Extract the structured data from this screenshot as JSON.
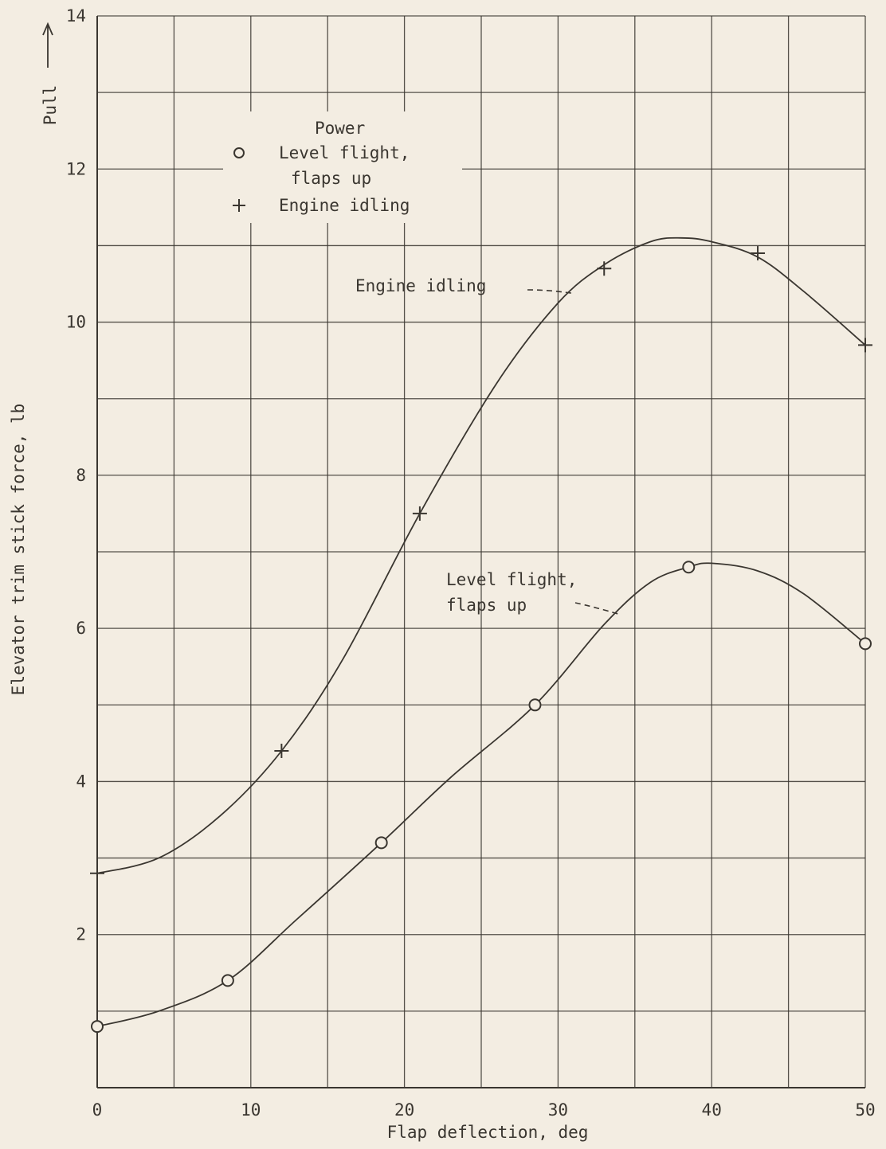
{
  "chart_data": {
    "type": "line",
    "xlabel": "Flap deflection, deg",
    "ylabel": "Elevator trim stick force, lb",
    "direction_label": "Pull",
    "xlim": [
      0,
      50
    ],
    "ylim": [
      0,
      14
    ],
    "x_ticks": [
      "0",
      "10",
      "20",
      "30",
      "40",
      "50"
    ],
    "y_ticks": [
      "2",
      "4",
      "6",
      "8",
      "10",
      "12",
      "14"
    ],
    "grid": true,
    "legend": {
      "title": "Power",
      "entries": [
        {
          "marker": "circle",
          "label_lines": [
            "Level flight,",
            "flaps up"
          ]
        },
        {
          "marker": "plus",
          "label_lines": [
            "Engine idling"
          ]
        }
      ]
    },
    "series": [
      {
        "name": "Level flight, flaps up",
        "marker": "circle",
        "points": [
          [
            0,
            0.8
          ],
          [
            8.5,
            1.4
          ],
          [
            18.5,
            3.2
          ],
          [
            28.5,
            5.0
          ],
          [
            38.5,
            6.8
          ],
          [
            50,
            5.8
          ]
        ],
        "curve": [
          [
            0,
            0.8
          ],
          [
            4,
            1.0
          ],
          [
            8.5,
            1.4
          ],
          [
            13,
            2.2
          ],
          [
            18.5,
            3.2
          ],
          [
            23,
            4.05
          ],
          [
            28.5,
            5.0
          ],
          [
            33,
            6.05
          ],
          [
            36,
            6.6
          ],
          [
            38.5,
            6.8
          ],
          [
            40,
            6.85
          ],
          [
            43,
            6.75
          ],
          [
            46,
            6.45
          ],
          [
            50,
            5.8
          ]
        ]
      },
      {
        "name": "Engine idling",
        "marker": "plus",
        "points": [
          [
            0,
            2.8
          ],
          [
            12,
            4.4
          ],
          [
            21,
            7.5
          ],
          [
            33,
            10.7
          ],
          [
            43,
            10.9
          ],
          [
            50,
            9.7
          ]
        ],
        "curve": [
          [
            0,
            2.8
          ],
          [
            4,
            3.0
          ],
          [
            8,
            3.55
          ],
          [
            12,
            4.4
          ],
          [
            16,
            5.6
          ],
          [
            21,
            7.5
          ],
          [
            26,
            9.2
          ],
          [
            30,
            10.25
          ],
          [
            33,
            10.75
          ],
          [
            36,
            11.05
          ],
          [
            38,
            11.1
          ],
          [
            40,
            11.05
          ],
          [
            43,
            10.85
          ],
          [
            46,
            10.4
          ],
          [
            50,
            9.7
          ]
        ]
      }
    ],
    "annotations": [
      {
        "series": "Engine idling",
        "lines": [
          "Engine idling"
        ],
        "text_at": [
          17,
          10.3
        ],
        "leader_to": [
          31,
          10.25
        ]
      },
      {
        "series": "Level flight, flaps up",
        "lines": [
          "Level flight,",
          "flaps up"
        ],
        "text_at": [
          23.5,
          6.4
        ],
        "leader_to": [
          34,
          6.1
        ]
      }
    ]
  }
}
